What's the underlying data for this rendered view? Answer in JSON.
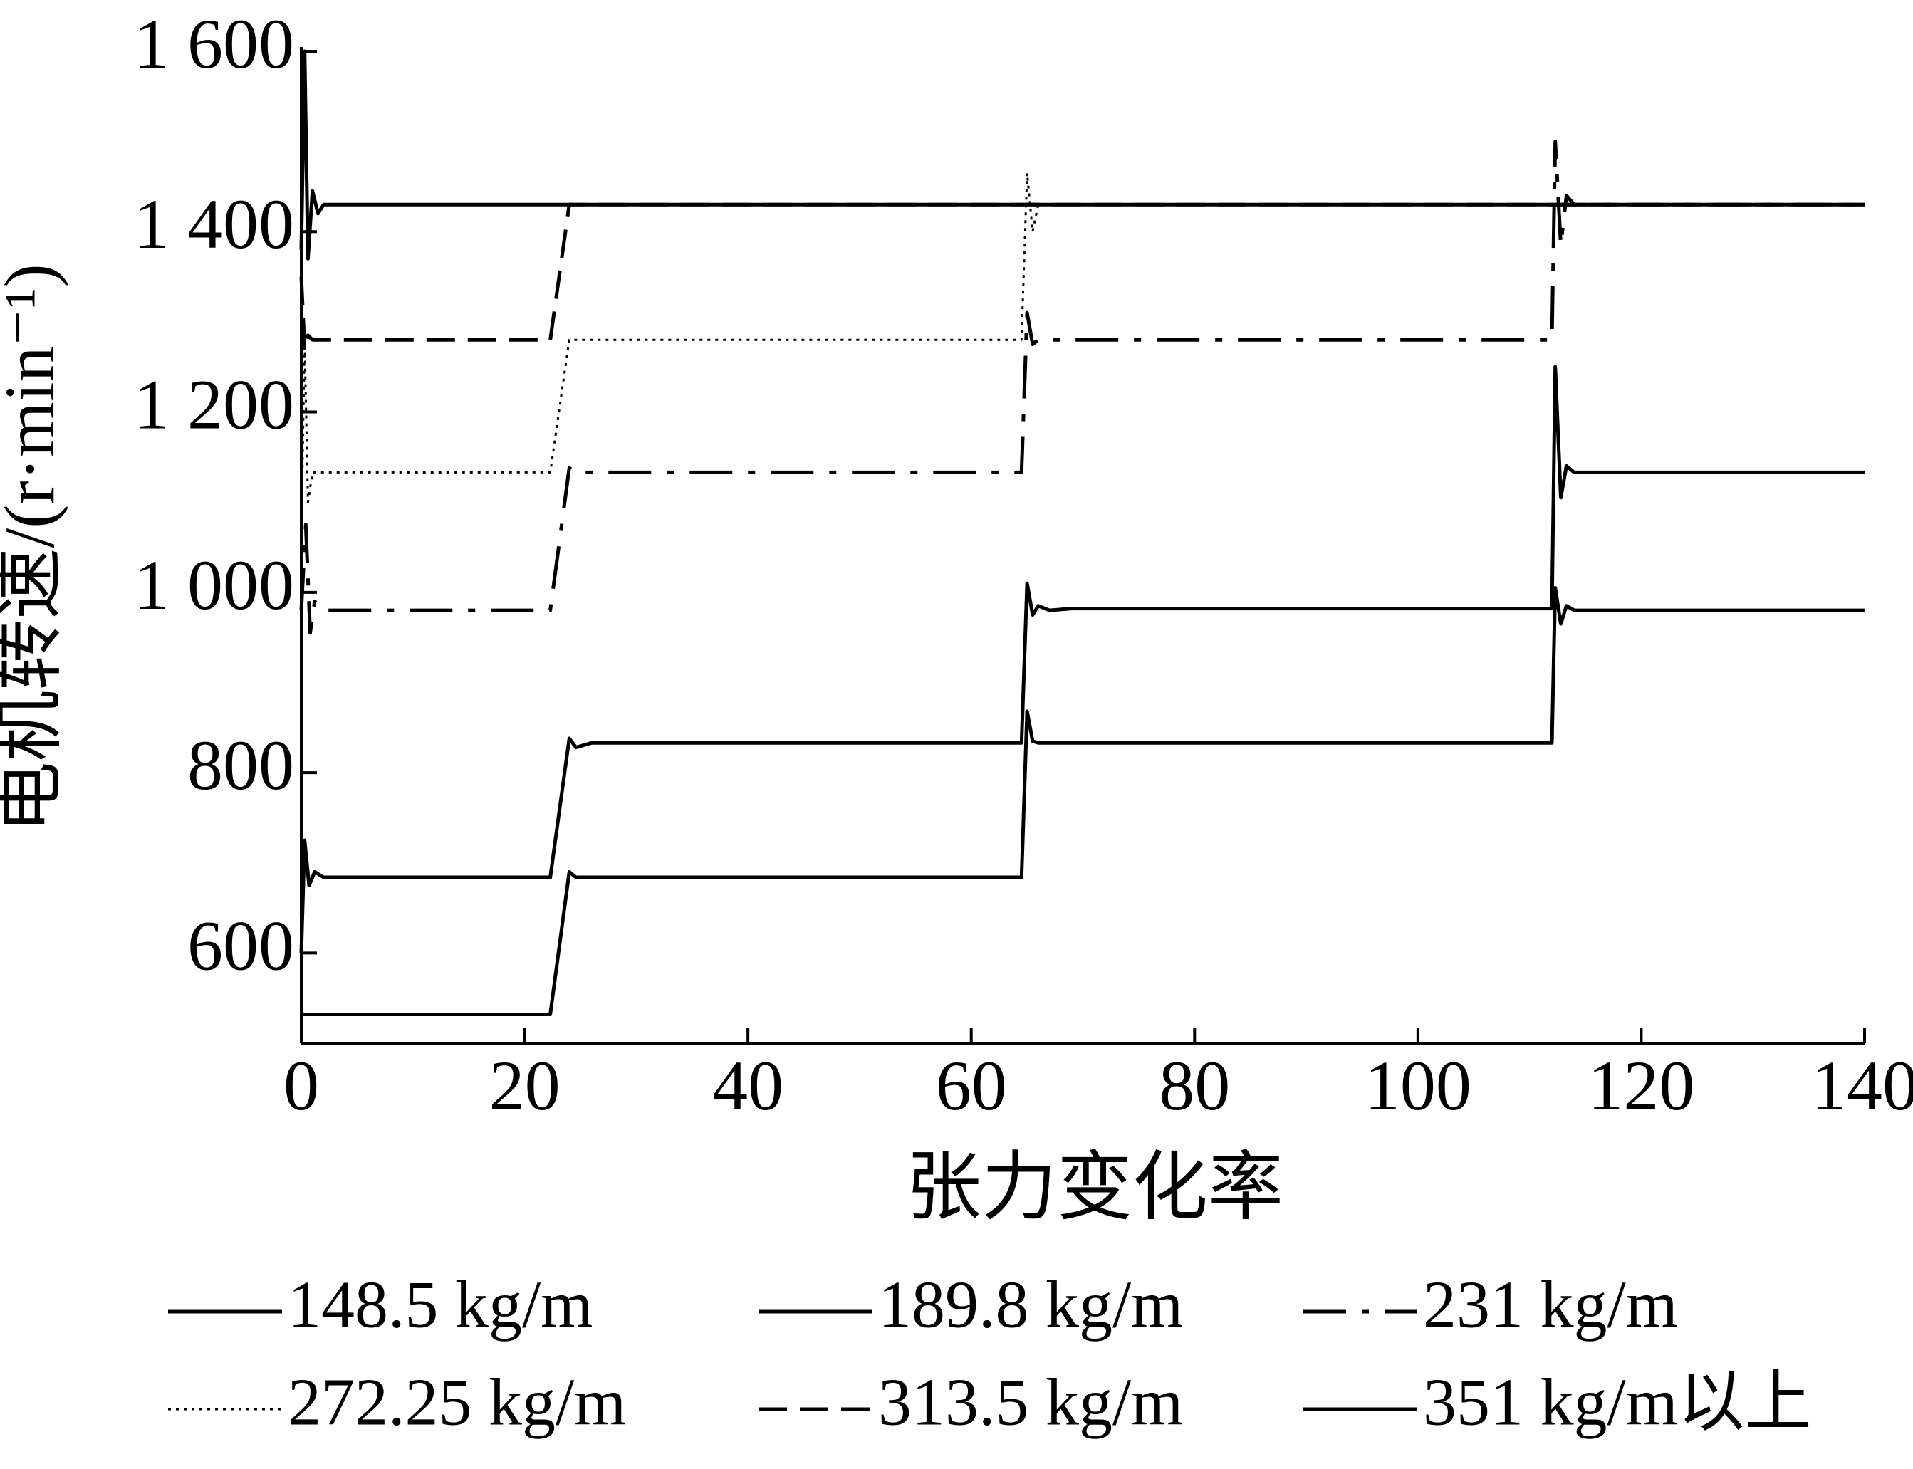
{
  "chart_data": {
    "type": "line",
    "xlabel": "张力变化率",
    "ylabel": "电机转速/(r·min⁻¹)",
    "xlim": [
      0,
      140
    ],
    "xticks": [
      0,
      20,
      40,
      60,
      80,
      100,
      120,
      140
    ],
    "ylim": [
      500,
      1600
    ],
    "yticks": [
      600,
      800,
      {
        "value": 1000,
        "label": "1 000"
      },
      {
        "value": 1200,
        "label": "1 200"
      },
      {
        "value": 1400,
        "label": "1 400"
      },
      {
        "value": 1600,
        "label": "1 600"
      }
    ],
    "series": [
      {
        "name": "148.5 kg/m",
        "color": "#000000",
        "style": "solid",
        "x": [
          0,
          22.3,
          24,
          24.6,
          25.5,
          64.5,
          65,
          65.5,
          66,
          112,
          112.3,
          112.8,
          113.3,
          114,
          140
        ],
        "values": [
          532,
          532,
          690,
          684,
          684,
          684,
          868,
          835,
          833,
          833,
          1005,
          965,
          985,
          980,
          980
        ]
      },
      {
        "name": "189.8 kg/m",
        "color": "#000000",
        "style": "solid",
        "x": [
          0,
          0.3,
          0.7,
          1.2,
          2,
          22.3,
          24,
          24.6,
          26,
          64.5,
          65,
          65.5,
          66,
          67,
          69,
          112,
          112.3,
          112.8,
          113.3,
          114,
          140
        ],
        "values": [
          600,
          725,
          675,
          690,
          684,
          684,
          838,
          828,
          833,
          833,
          1010,
          975,
          985,
          980,
          982,
          982,
          1250,
          1105,
          1140,
          1133,
          1133
        ]
      },
      {
        "name": "231 kg/m",
        "color": "#000000",
        "style": "dashdot",
        "x": [
          0,
          0.4,
          0.8,
          1.2,
          2,
          22.3,
          24,
          24.6,
          26,
          64.5,
          65,
          65.5,
          66,
          112,
          112.3,
          112.8,
          113.3,
          114,
          140
        ],
        "values": [
          980,
          1075,
          955,
          990,
          980,
          980,
          1138,
          1133,
          1133,
          1133,
          1310,
          1275,
          1280,
          1280,
          1500,
          1385,
          1440,
          1430,
          1430
        ]
      },
      {
        "name": "272.25 kg/m",
        "color": "#000000",
        "style": "dotted",
        "x": [
          0,
          0.3,
          0.6,
          1,
          22.3,
          24,
          64.5,
          65,
          65.5,
          66,
          140
        ],
        "values": [
          1060,
          1280,
          1100,
          1133,
          1133,
          1280,
          1280,
          1465,
          1400,
          1430,
          1430
        ]
      },
      {
        "name": "313.5 kg/m",
        "color": "#000000",
        "style": "dashed",
        "x": [
          0,
          0.3,
          0.6,
          1,
          22.3,
          24,
          140
        ],
        "values": [
          1350,
          1270,
          1285,
          1280,
          1280,
          1430,
          1430
        ]
      },
      {
        "name": "351 kg/m以上",
        "color": "#000000",
        "style": "solid",
        "x": [
          0,
          0.3,
          0.6,
          1,
          1.5,
          2,
          140
        ],
        "values": [
          1380,
          1600,
          1370,
          1445,
          1420,
          1430,
          1430
        ]
      }
    ]
  }
}
